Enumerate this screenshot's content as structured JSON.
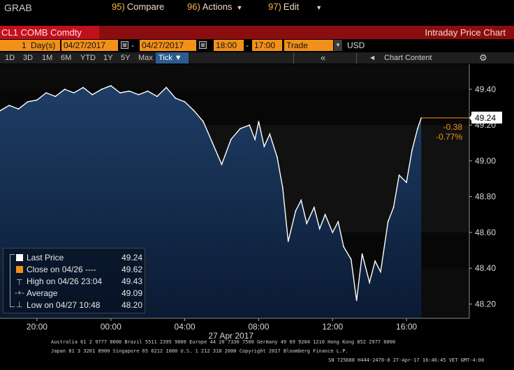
{
  "window": {
    "title": "GRAB"
  },
  "toolbar": {
    "ticker": "CL1 COMB Comdty",
    "compare": {
      "num": "95)",
      "label": "Compare"
    },
    "actions": {
      "num": "96)",
      "label": "Actions"
    },
    "edit": {
      "num": "97)",
      "label": "Edit"
    },
    "chart_title": "Intraday Price Chart"
  },
  "settings": {
    "period": "1",
    "period_unit": "Day(s)",
    "start_date": "04/27/2017",
    "end_date": "04/27/2017",
    "start_time": "18:00",
    "end_time": "17:00",
    "price_type": "Trade",
    "currency": "USD"
  },
  "ranges": [
    "1D",
    "3D",
    "1M",
    "6M",
    "YTD",
    "1Y",
    "5Y",
    "Max"
  ],
  "range_selected": "Tick ▼",
  "chart_nav": {
    "back": "«",
    "chart_content": "Chart Content",
    "gear": "⚙"
  },
  "colors": {
    "accent_red": "#8b0d10",
    "ticker_red": "#c2101a",
    "field_orange": "#f39019",
    "price_line": "#ffffff",
    "area_top": "#1f3e66",
    "area_bottom": "#0a1a33",
    "close_line": "#f39019",
    "change_text": "#f39019"
  },
  "chart_data": {
    "type": "area",
    "x_tick_labels": [
      "20:00",
      "00:00",
      "04:00",
      "08:00",
      "12:00",
      "16:00"
    ],
    "x_date_label": "27 Apr 2017",
    "y_ticks": [
      48.2,
      48.4,
      48.6,
      48.8,
      49.0,
      49.2,
      49.4
    ],
    "y_tick_labels": [
      "48.20",
      "48.40",
      "48.60",
      "48.80",
      "49.00",
      "49.20",
      "49.40"
    ],
    "ylim": [
      48.12,
      49.54
    ],
    "x_hours": [
      0,
      0.5,
      1,
      1.5,
      2,
      2.5,
      3,
      3.5,
      4,
      4.5,
      5,
      5.5,
      6,
      6.5,
      7,
      7.5,
      8,
      8.5,
      9,
      9.5,
      10,
      10.5,
      11,
      11.5,
      12,
      12.5,
      13,
      13.5,
      13.8,
      14,
      14.3,
      14.6,
      15,
      15.3,
      15.6,
      16,
      16.3,
      16.6,
      17,
      17.3,
      17.6,
      18,
      18.3,
      18.6,
      19,
      19.3,
      19.6,
      20,
      20.3,
      20.6,
      21,
      21.3,
      21.6,
      22,
      22.3,
      22.6,
      22.8
    ],
    "values": [
      49.28,
      49.31,
      49.29,
      49.33,
      49.34,
      49.38,
      49.36,
      49.4,
      49.38,
      49.41,
      49.37,
      49.4,
      49.42,
      49.38,
      49.39,
      49.37,
      49.39,
      49.36,
      49.41,
      49.35,
      49.33,
      49.28,
      49.22,
      49.1,
      48.98,
      49.12,
      49.18,
      49.2,
      49.12,
      49.22,
      49.08,
      49.15,
      49.02,
      48.85,
      48.55,
      48.72,
      48.78,
      48.65,
      48.74,
      48.62,
      48.7,
      48.6,
      48.66,
      48.52,
      48.45,
      48.22,
      48.48,
      48.32,
      48.44,
      48.38,
      48.66,
      48.74,
      48.92,
      48.88,
      49.06,
      49.18,
      49.24
    ],
    "x_range_hours": [
      0,
      25.4
    ],
    "close_prev": 49.62,
    "last_price": "49.24",
    "change": "-0.38",
    "change_pct": "-0.77%"
  },
  "legend": [
    {
      "label": "Last Price",
      "value": "49.24",
      "marker": "white-square"
    },
    {
      "label": "Close on 04/26 ----",
      "value": "49.62",
      "marker": "orange-square"
    },
    {
      "label": "High on 04/26 23:04",
      "value": "49.43",
      "marker": "high-marker"
    },
    {
      "label": "Average",
      "value": "49.09",
      "marker": "average-marker"
    },
    {
      "label": "Low on 04/27 10:48",
      "value": "48.20",
      "marker": "low-marker"
    }
  ],
  "footer": {
    "line1": "Australia 61 2 9777 8600 Brazil 5511 2395 9000 Europe 44 20 7330 7500 Germany 49 69 9204 1210 Hong Kong 852 2977 6000",
    "line2": "Japan 81 3 3201 8900        Singapore 65 6212 1000        U.S. 1 212 318 2000        Copyright 2017 Bloomberg Finance L.P.",
    "line3": "SN 725688 H444-2470-0 27-Apr-17 16:46:45 VET  GMT-4:00"
  }
}
